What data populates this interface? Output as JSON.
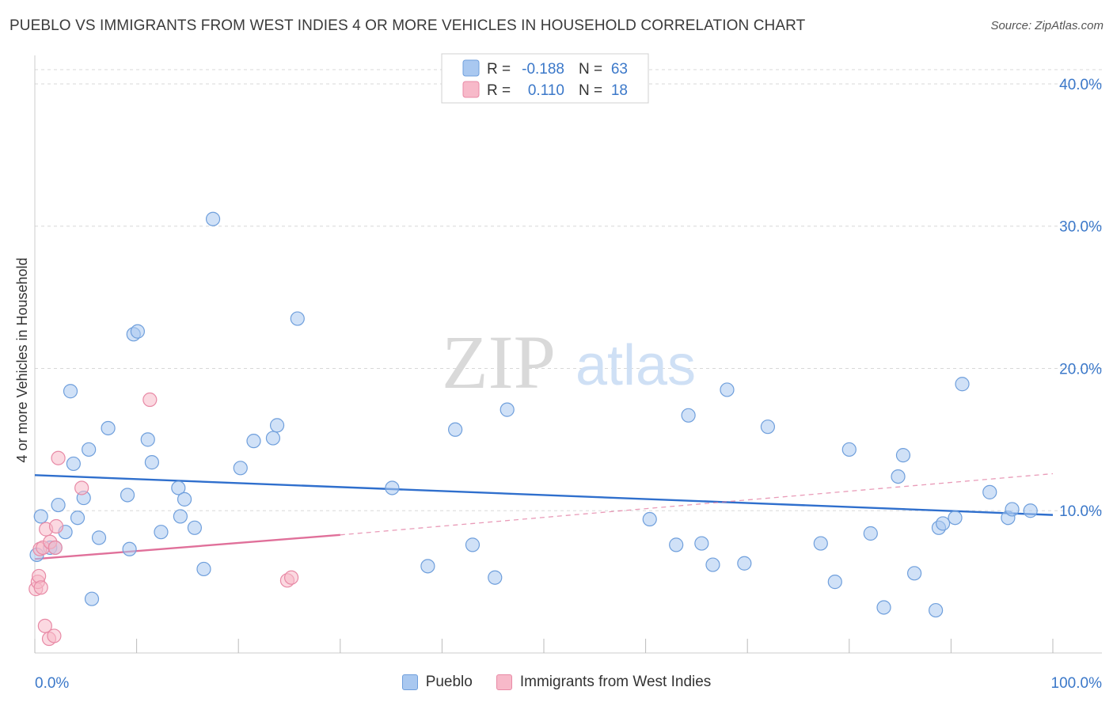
{
  "title": "PUEBLO VS IMMIGRANTS FROM WEST INDIES 4 OR MORE VEHICLES IN HOUSEHOLD CORRELATION CHART",
  "source": "Source: ZipAtlas.com",
  "watermark": {
    "zip": "ZIP",
    "atlas": "atlas"
  },
  "colors": {
    "blue_fill": "#a9c8f0",
    "blue_stroke": "#6f9fdc",
    "blue_line": "#2f6fcd",
    "pink_fill": "#f7b9c9",
    "pink_stroke": "#e88aa6",
    "pink_line": "#e0709a",
    "axis_text": "#3b78c9",
    "grid": "#d8d8d8"
  },
  "legend_top": [
    {
      "r_label": "R =",
      "r_value": "-0.188",
      "n_label": "N =",
      "n_value": "63"
    },
    {
      "r_label": "R =",
      "r_value": "0.110",
      "n_label": "N =",
      "n_value": "18"
    }
  ],
  "chart_data": {
    "type": "scatter",
    "title": "PUEBLO VS IMMIGRANTS FROM WEST INDIES 4 OR MORE VEHICLES IN HOUSEHOLD CORRELATION CHART",
    "xlabel": "",
    "ylabel": "4 or more Vehicles in Household",
    "xlim": [
      0,
      100
    ],
    "ylim": [
      0,
      42
    ],
    "x_tick_labels": [
      "0.0%",
      "100.0%"
    ],
    "y_ticks": [
      10,
      20,
      30,
      40
    ],
    "y_tick_labels": [
      "10.0%",
      "20.0%",
      "30.0%",
      "40.0%"
    ],
    "grid": true,
    "legend_position": "top-center",
    "series": [
      {
        "name": "Pueblo",
        "color": "#a9c8f0",
        "trend": {
          "x": [
            0,
            100
          ],
          "y": [
            12.5,
            9.7
          ]
        },
        "points": [
          [
            0.2,
            6.9
          ],
          [
            0.6,
            9.6
          ],
          [
            1.5,
            7.4
          ],
          [
            2.0,
            7.4
          ],
          [
            2.3,
            10.4
          ],
          [
            3.0,
            8.5
          ],
          [
            3.5,
            18.4
          ],
          [
            3.8,
            13.3
          ],
          [
            4.2,
            9.5
          ],
          [
            4.8,
            10.9
          ],
          [
            5.3,
            14.3
          ],
          [
            5.6,
            3.8
          ],
          [
            6.3,
            8.1
          ],
          [
            7.2,
            15.8
          ],
          [
            9.1,
            11.1
          ],
          [
            9.3,
            7.3
          ],
          [
            9.7,
            22.4
          ],
          [
            10.1,
            22.6
          ],
          [
            11.1,
            15.0
          ],
          [
            11.5,
            13.4
          ],
          [
            12.4,
            8.5
          ],
          [
            14.1,
            11.6
          ],
          [
            14.3,
            9.6
          ],
          [
            14.7,
            10.8
          ],
          [
            15.7,
            8.8
          ],
          [
            16.6,
            5.9
          ],
          [
            17.5,
            30.5
          ],
          [
            20.2,
            13.0
          ],
          [
            21.5,
            14.9
          ],
          [
            23.4,
            15.1
          ],
          [
            23.8,
            16.0
          ],
          [
            25.8,
            23.5
          ],
          [
            35.1,
            11.6
          ],
          [
            38.6,
            6.1
          ],
          [
            41.3,
            15.7
          ],
          [
            43.0,
            7.6
          ],
          [
            45.2,
            5.3
          ],
          [
            46.4,
            17.1
          ],
          [
            60.4,
            9.4
          ],
          [
            63.0,
            7.6
          ],
          [
            64.2,
            16.7
          ],
          [
            65.5,
            7.7
          ],
          [
            66.6,
            6.2
          ],
          [
            68.0,
            18.5
          ],
          [
            69.7,
            6.3
          ],
          [
            72.0,
            15.9
          ],
          [
            77.2,
            7.7
          ],
          [
            78.6,
            5.0
          ],
          [
            80.0,
            14.3
          ],
          [
            82.1,
            8.4
          ],
          [
            83.4,
            3.2
          ],
          [
            84.8,
            12.4
          ],
          [
            85.3,
            13.9
          ],
          [
            86.4,
            5.6
          ],
          [
            88.5,
            3.0
          ],
          [
            88.8,
            8.8
          ],
          [
            89.2,
            9.1
          ],
          [
            90.4,
            9.5
          ],
          [
            91.1,
            18.9
          ],
          [
            93.8,
            11.3
          ],
          [
            95.6,
            9.5
          ],
          [
            96.0,
            10.1
          ],
          [
            97.8,
            10.0
          ]
        ]
      },
      {
        "name": "Immigrants from West Indies",
        "color": "#f7b9c9",
        "trend": {
          "x": [
            0,
            30
          ],
          "y": [
            6.6,
            8.3
          ],
          "dashed_to": {
            "x": 100,
            "y": 12.6
          }
        },
        "points": [
          [
            0.1,
            4.5
          ],
          [
            0.3,
            5.0
          ],
          [
            0.4,
            5.4
          ],
          [
            0.5,
            7.3
          ],
          [
            0.6,
            4.6
          ],
          [
            0.8,
            7.4
          ],
          [
            1.0,
            1.9
          ],
          [
            1.1,
            8.7
          ],
          [
            1.4,
            1.0
          ],
          [
            1.5,
            7.8
          ],
          [
            1.9,
            1.2
          ],
          [
            2.0,
            7.4
          ],
          [
            2.1,
            8.9
          ],
          [
            2.3,
            13.7
          ],
          [
            4.6,
            11.6
          ],
          [
            11.3,
            17.8
          ],
          [
            24.8,
            5.1
          ],
          [
            25.2,
            5.3
          ]
        ]
      }
    ]
  }
}
